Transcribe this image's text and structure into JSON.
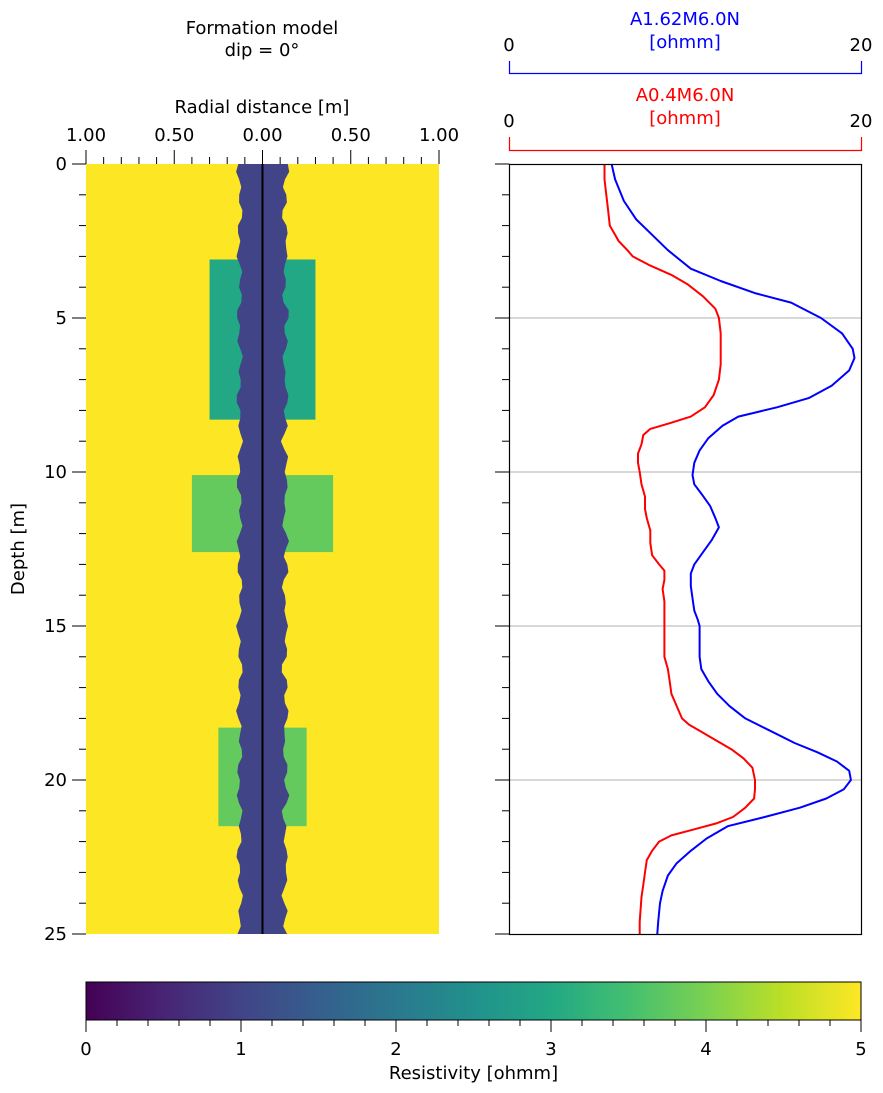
{
  "chart_data": [
    {
      "type": "heatmap",
      "title": "Formation model",
      "subtitle": "dip = 0°",
      "xlabel": "Radial distance [m]",
      "ylabel": "Depth [m]",
      "xlim": [
        -1.0,
        1.0
      ],
      "ylim": [
        0,
        25
      ],
      "xticks": [
        "1.00",
        "0.50",
        "0.00",
        "0.50",
        "1.00"
      ],
      "yticks": [
        "0",
        "5",
        "10",
        "15",
        "20",
        "25"
      ],
      "colormap": "viridis",
      "background_resistivity": 5.0,
      "borehole": {
        "radius_m": 0.13,
        "resistivity": 1.0
      },
      "zones": [
        {
          "top": 3.1,
          "bottom": 8.3,
          "radius": 0.3,
          "resistivity": 3.0
        },
        {
          "top": 10.1,
          "bottom": 12.6,
          "radius": 0.4,
          "resistivity": 3.8
        },
        {
          "top": 18.3,
          "bottom": 21.5,
          "radius": 0.25,
          "resistivity": 3.8
        }
      ]
    },
    {
      "type": "line",
      "ylim": [
        0,
        25
      ],
      "gridlines_at_depth": [
        5,
        10,
        15,
        20
      ],
      "series": [
        {
          "name": "A1.62M6.0N",
          "unit": "[ohmm]",
          "color": "#0000ff",
          "xlim": [
            0,
            20
          ],
          "tick_min": "0",
          "tick_max": "20",
          "points": [
            [
              5.8,
              0
            ],
            [
              6.0,
              0.5
            ],
            [
              6.5,
              1.2
            ],
            [
              7.2,
              1.8
            ],
            [
              8.1,
              2.3
            ],
            [
              9.0,
              2.8
            ],
            [
              10.3,
              3.4
            ],
            [
              12.0,
              3.8
            ],
            [
              14.0,
              4.2
            ],
            [
              16.0,
              4.5
            ],
            [
              17.7,
              5.0
            ],
            [
              18.9,
              5.5
            ],
            [
              19.5,
              6.0
            ],
            [
              19.6,
              6.3
            ],
            [
              19.3,
              6.7
            ],
            [
              18.3,
              7.2
            ],
            [
              17.0,
              7.6
            ],
            [
              15.2,
              7.9
            ],
            [
              13.0,
              8.2
            ],
            [
              12.1,
              8.5
            ],
            [
              11.3,
              8.9
            ],
            [
              10.8,
              9.3
            ],
            [
              10.5,
              9.7
            ],
            [
              10.4,
              10.1
            ],
            [
              10.5,
              10.4
            ],
            [
              10.9,
              10.7
            ],
            [
              11.4,
              11.1
            ],
            [
              11.7,
              11.5
            ],
            [
              11.9,
              11.8
            ],
            [
              11.5,
              12.2
            ],
            [
              11.0,
              12.6
            ],
            [
              10.5,
              13.0
            ],
            [
              10.3,
              13.3
            ],
            [
              10.3,
              13.7
            ],
            [
              10.4,
              14.1
            ],
            [
              10.5,
              14.5
            ],
            [
              10.7,
              14.8
            ],
            [
              10.8,
              15.0
            ],
            [
              10.8,
              15.5
            ],
            [
              10.8,
              16.0
            ],
            [
              10.9,
              16.4
            ],
            [
              11.3,
              16.8
            ],
            [
              11.8,
              17.2
            ],
            [
              12.5,
              17.6
            ],
            [
              13.4,
              18.0
            ],
            [
              14.8,
              18.4
            ],
            [
              16.2,
              18.8
            ],
            [
              17.5,
              19.1
            ],
            [
              18.6,
              19.4
            ],
            [
              19.3,
              19.7
            ],
            [
              19.4,
              20.0
            ],
            [
              19.0,
              20.3
            ],
            [
              18.0,
              20.6
            ],
            [
              16.5,
              20.9
            ],
            [
              14.5,
              21.2
            ],
            [
              12.4,
              21.5
            ],
            [
              11.2,
              21.9
            ],
            [
              10.3,
              22.3
            ],
            [
              9.5,
              22.7
            ],
            [
              9.0,
              23.1
            ],
            [
              8.7,
              23.6
            ],
            [
              8.55,
              24.0
            ],
            [
              8.45,
              24.6
            ],
            [
              8.4,
              25.0
            ]
          ]
        },
        {
          "name": "A0.4M6.0N",
          "unit": "[ohmm]",
          "color": "#ff0000",
          "xlim": [
            0,
            20
          ],
          "tick_min": "0",
          "tick_max": "20",
          "points": [
            [
              5.4,
              0
            ],
            [
              5.4,
              0.5
            ],
            [
              5.5,
              1.0
            ],
            [
              5.6,
              1.5
            ],
            [
              5.7,
              2.0
            ],
            [
              6.0,
              2.3
            ],
            [
              6.2,
              2.5
            ],
            [
              6.7,
              2.8
            ],
            [
              7.0,
              3.0
            ],
            [
              8.0,
              3.3
            ],
            [
              9.2,
              3.6
            ],
            [
              10.1,
              3.9
            ],
            [
              11.0,
              4.3
            ],
            [
              11.7,
              4.7
            ],
            [
              11.9,
              5.0
            ],
            [
              12.0,
              5.5
            ],
            [
              12.0,
              6.0
            ],
            [
              12.0,
              6.5
            ],
            [
              11.9,
              7.0
            ],
            [
              11.6,
              7.5
            ],
            [
              11.1,
              7.9
            ],
            [
              10.3,
              8.2
            ],
            [
              9.2,
              8.4
            ],
            [
              8.0,
              8.6
            ],
            [
              7.6,
              8.8
            ],
            [
              7.5,
              9.1
            ],
            [
              7.3,
              9.4
            ],
            [
              7.3,
              9.7
            ],
            [
              7.4,
              10.0
            ],
            [
              7.5,
              10.4
            ],
            [
              7.7,
              10.8
            ],
            [
              7.7,
              11.2
            ],
            [
              7.8,
              11.5
            ],
            [
              8.0,
              11.9
            ],
            [
              8.0,
              12.3
            ],
            [
              8.1,
              12.7
            ],
            [
              8.5,
              13.0
            ],
            [
              8.8,
              13.2
            ],
            [
              8.8,
              13.5
            ],
            [
              8.7,
              13.8
            ],
            [
              8.8,
              14.2
            ],
            [
              8.8,
              14.5
            ],
            [
              8.8,
              15.0
            ],
            [
              8.8,
              15.5
            ],
            [
              8.8,
              16.0
            ],
            [
              9.0,
              16.4
            ],
            [
              9.1,
              16.8
            ],
            [
              9.2,
              17.2
            ],
            [
              9.5,
              17.6
            ],
            [
              9.8,
              18.0
            ],
            [
              10.2,
              18.2
            ],
            [
              10.8,
              18.4
            ],
            [
              11.7,
              18.7
            ],
            [
              12.6,
              19.0
            ],
            [
              13.3,
              19.3
            ],
            [
              13.8,
              19.6
            ],
            [
              13.95,
              20.0
            ],
            [
              13.95,
              20.3
            ],
            [
              13.9,
              20.6
            ],
            [
              13.4,
              20.9
            ],
            [
              12.7,
              21.2
            ],
            [
              11.8,
              21.4
            ],
            [
              10.5,
              21.6
            ],
            [
              9.2,
              21.8
            ],
            [
              8.5,
              22.0
            ],
            [
              8.1,
              22.3
            ],
            [
              7.8,
              22.6
            ],
            [
              7.7,
              23.0
            ],
            [
              7.6,
              23.4
            ],
            [
              7.5,
              23.8
            ],
            [
              7.45,
              24.2
            ],
            [
              7.4,
              24.6
            ],
            [
              7.4,
              25.0
            ]
          ]
        }
      ],
      "yticks": [
        "0",
        "5",
        "10",
        "15",
        "20",
        "25"
      ]
    },
    {
      "type": "colorbar",
      "label": "Resistivity [ohmm]",
      "range": [
        0,
        5
      ],
      "ticks": [
        "0",
        "1",
        "2",
        "3",
        "4",
        "5"
      ],
      "colormap": "viridis"
    }
  ]
}
